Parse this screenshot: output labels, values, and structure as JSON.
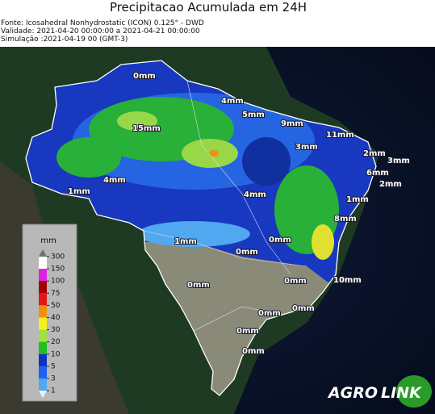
{
  "header": {
    "title": "Precipitacao Acumulada em 24H",
    "source": "Fonte: Icosahedral Nonhydrostatic (ICON) 0.125° - DWD",
    "validity": "Validade: 2021-04-20 00:00:00 a 2021-04-21 00:00:00",
    "simulation": "Simulação :2021-04-19 00 (GMT-3)"
  },
  "legend": {
    "unit": "mm",
    "levels": [
      300,
      150,
      100,
      75,
      50,
      40,
      30,
      20,
      10,
      5,
      3,
      1
    ],
    "colors": [
      "#ffffff",
      "#e020e0",
      "#a00000",
      "#e01818",
      "#f09010",
      "#f0f020",
      "#a0e040",
      "#20c020",
      "#1030c0",
      "#2060f0",
      "#50a8f0"
    ]
  },
  "map_labels": [
    "0mm",
    "4mm",
    "5mm",
    "9mm",
    "11mm",
    "15mm",
    "3mm",
    "2mm",
    "3mm",
    "6mm",
    "2mm",
    "4mm",
    "1mm",
    "4mm",
    "1mm",
    "8mm",
    "0mm",
    "1mm",
    "0mm",
    "0mm",
    "0mm",
    "10mm",
    "0mm",
    "0mm",
    "0mm",
    "0mm"
  ],
  "logo": {
    "part1": "AGRO",
    "part2": "LINK"
  }
}
